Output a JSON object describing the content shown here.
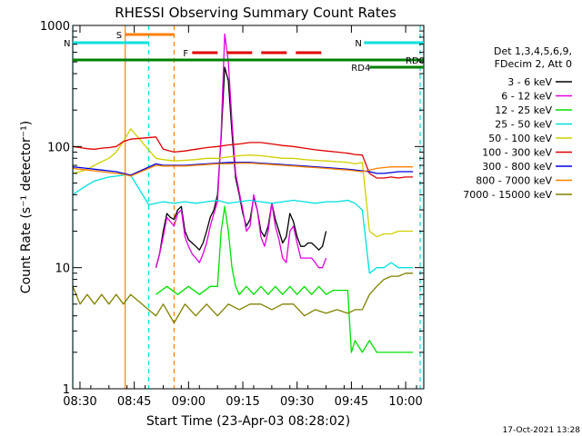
{
  "chart_data": {
    "type": "line",
    "title": "RHESSI Observing Summary Count Rates",
    "xlabel": "Start Time (23-Apr-03 08:28:02)",
    "ylabel": "Count Rate (s⁻¹ detector⁻¹)",
    "yscale": "log",
    "ylim": [
      1,
      1000
    ],
    "xlim_minutes": [
      0,
      97
    ],
    "x_unit": "minutes since 08:28:02",
    "x_ticks": [
      {
        "label": "08:30",
        "t": 2
      },
      {
        "label": "08:45",
        "t": 17
      },
      {
        "label": "09:00",
        "t": 32
      },
      {
        "label": "09:15",
        "t": 47
      },
      {
        "label": "09:30",
        "t": 62
      },
      {
        "label": "09:45",
        "t": 77
      },
      {
        "label": "10:00",
        "t": 92
      }
    ],
    "y_ticks": [
      {
        "label": "1",
        "v": 1
      },
      {
        "label": "10",
        "v": 10
      },
      {
        "label": "100",
        "v": 100
      },
      {
        "label": "1000",
        "v": 1000
      }
    ],
    "legend_title": [
      "Det 1,3,4,5,6,9,",
      "FDecim 2, Att 0"
    ],
    "legend_position": "right",
    "series": [
      {
        "name": "3 - 6 keV",
        "color": "#000000",
        "x": [
          23,
          24,
          25,
          26,
          27,
          28,
          29,
          30,
          31,
          32,
          33,
          34,
          35,
          36,
          37,
          38,
          39,
          40,
          41,
          42,
          43,
          44,
          45,
          46,
          47,
          48,
          49,
          50,
          51,
          52,
          53,
          54,
          55,
          56,
          57,
          58,
          59,
          60,
          61,
          62,
          63,
          64,
          65,
          66,
          67,
          68,
          69,
          70
        ],
        "values": [
          10,
          13,
          20,
          28,
          26,
          25,
          30,
          32,
          20,
          17,
          16,
          15,
          14,
          16,
          20,
          26,
          30,
          40,
          120,
          450,
          350,
          130,
          55,
          40,
          28,
          22,
          25,
          38,
          30,
          20,
          18,
          22,
          34,
          25,
          20,
          16,
          18,
          28,
          24,
          18,
          15,
          15,
          16,
          16,
          15,
          14,
          15,
          20
        ]
      },
      {
        "name": "6 - 12 keV",
        "color": "#e000e0",
        "x": [
          23,
          24,
          25,
          26,
          27,
          28,
          29,
          30,
          31,
          32,
          33,
          34,
          35,
          36,
          37,
          38,
          39,
          40,
          41,
          42,
          43,
          44,
          45,
          46,
          47,
          48,
          49,
          50,
          51,
          52,
          53,
          54,
          55,
          56,
          57,
          58,
          59,
          60,
          61,
          62,
          63,
          64,
          65,
          66,
          67,
          68,
          69,
          70
        ],
        "values": [
          10,
          13,
          18,
          26,
          24,
          22,
          28,
          30,
          18,
          15,
          13,
          12,
          11,
          13,
          16,
          22,
          28,
          35,
          130,
          850,
          500,
          160,
          60,
          42,
          30,
          20,
          22,
          40,
          30,
          18,
          15,
          20,
          34,
          22,
          17,
          12,
          11,
          20,
          22,
          16,
          12,
          12,
          12,
          12,
          11,
          10,
          10,
          12
        ]
      },
      {
        "name": "12 - 25 keV",
        "color": "#00e000",
        "x": [
          23,
          26,
          29,
          32,
          35,
          38,
          40,
          41,
          42,
          43,
          44,
          45,
          46,
          48,
          50,
          52,
          54,
          56,
          58,
          60,
          62,
          64,
          66,
          68,
          70,
          72,
          76,
          77,
          78,
          80,
          82,
          84,
          86,
          88,
          90,
          92,
          94
        ],
        "values": [
          6,
          7,
          6,
          7,
          6,
          7,
          7,
          20,
          32,
          20,
          10,
          7,
          6,
          7,
          6,
          7,
          6,
          7,
          6,
          7,
          6,
          7,
          6,
          7,
          6,
          6.5,
          6.5,
          2,
          2.5,
          2,
          2.5,
          2,
          2,
          2,
          2,
          2,
          2
        ]
      },
      {
        "name": "25 - 50 keV",
        "color": "#00e0e0",
        "x": [
          0,
          2,
          4,
          6,
          8,
          10,
          12,
          14,
          16,
          21,
          23,
          25,
          28,
          31,
          34,
          37,
          40,
          43,
          46,
          49,
          52,
          55,
          58,
          61,
          64,
          67,
          70,
          73,
          76,
          78,
          80,
          82,
          84,
          86,
          88,
          90,
          92,
          94
        ],
        "values": [
          40,
          44,
          48,
          52,
          54,
          56,
          57,
          58,
          58,
          33,
          34,
          35,
          34,
          35,
          34,
          35,
          36,
          34,
          35,
          36,
          35,
          34,
          35,
          36,
          35,
          34,
          35,
          35,
          36,
          34,
          30,
          9,
          10,
          10,
          11,
          10,
          10,
          10
        ]
      },
      {
        "name": "50 - 100 keV",
        "color": "#d0d000",
        "x": [
          0,
          2,
          4,
          6,
          8,
          10,
          12,
          14,
          16,
          23,
          25,
          28,
          31,
          34,
          37,
          40,
          43,
          46,
          49,
          52,
          55,
          58,
          61,
          64,
          67,
          70,
          73,
          76,
          78,
          80,
          82,
          84,
          86,
          88,
          90,
          92,
          94
        ],
        "values": [
          60,
          62,
          65,
          70,
          75,
          80,
          90,
          110,
          140,
          80,
          78,
          76,
          77,
          78,
          80,
          80,
          82,
          84,
          85,
          84,
          82,
          80,
          80,
          78,
          77,
          76,
          75,
          74,
          72,
          74,
          20,
          18,
          19,
          19,
          20,
          20,
          20
        ]
      },
      {
        "name": "100 - 300 keV",
        "color": "#e00000",
        "x": [
          0,
          2,
          4,
          6,
          8,
          10,
          12,
          14,
          16,
          23,
          25,
          28,
          31,
          34,
          37,
          40,
          43,
          46,
          49,
          52,
          55,
          58,
          61,
          64,
          67,
          70,
          73,
          76,
          78,
          80,
          82,
          84,
          86,
          88,
          90,
          92,
          94
        ],
        "values": [
          100,
          98,
          96,
          95,
          97,
          98,
          100,
          110,
          115,
          120,
          95,
          90,
          92,
          95,
          98,
          100,
          103,
          105,
          108,
          108,
          105,
          102,
          100,
          97,
          94,
          92,
          90,
          88,
          86,
          85,
          60,
          55,
          55,
          56,
          55,
          56,
          56
        ]
      },
      {
        "name": "300 - 800 keV",
        "color": "#0000e0",
        "x": [
          0,
          2,
          4,
          6,
          8,
          10,
          12,
          14,
          16,
          23,
          25,
          28,
          31,
          34,
          37,
          40,
          43,
          46,
          49,
          52,
          55,
          58,
          61,
          64,
          67,
          70,
          73,
          76,
          78,
          80,
          82,
          84,
          86,
          88,
          90,
          92,
          94
        ],
        "values": [
          68,
          67,
          66,
          65,
          64,
          63,
          62,
          60,
          58,
          72,
          70,
          70,
          70,
          71,
          72,
          73,
          74,
          74,
          74,
          73,
          72,
          71,
          70,
          69,
          68,
          67,
          66,
          65,
          64,
          63,
          62,
          60,
          60,
          61,
          62,
          62,
          62
        ]
      },
      {
        "name": "800 - 7000 keV",
        "color": "#ff8000",
        "x": [
          0,
          2,
          4,
          6,
          8,
          10,
          12,
          14,
          16,
          23,
          25,
          28,
          31,
          34,
          37,
          40,
          43,
          46,
          49,
          52,
          55,
          58,
          61,
          64,
          67,
          70,
          73,
          76,
          78,
          80,
          82,
          84,
          86,
          88,
          90,
          92,
          94
        ],
        "values": [
          66,
          65,
          64,
          63,
          62,
          61,
          60,
          59,
          57,
          70,
          69,
          69,
          69,
          70,
          71,
          72,
          72,
          73,
          73,
          72,
          71,
          70,
          69,
          68,
          67,
          66,
          65,
          64,
          63,
          62,
          64,
          66,
          67,
          68,
          68,
          68,
          68
        ]
      },
      {
        "name": "7000 - 15000 keV",
        "color": "#808000",
        "x": [
          0,
          2,
          4,
          6,
          8,
          10,
          12,
          14,
          16,
          23,
          25,
          28,
          31,
          34,
          37,
          40,
          43,
          46,
          49,
          52,
          55,
          58,
          61,
          64,
          67,
          70,
          73,
          76,
          78,
          80,
          82,
          84,
          86,
          88,
          90,
          92,
          94
        ],
        "values": [
          7,
          5,
          6,
          5,
          6,
          5,
          6,
          5,
          6,
          4,
          5,
          3.5,
          5,
          4,
          5,
          4,
          5,
          4.5,
          5,
          5,
          4.5,
          5,
          5,
          4,
          4.5,
          4.2,
          4.5,
          4.2,
          4.5,
          4.5,
          6,
          7,
          8,
          8.5,
          8.5,
          9,
          9
        ]
      }
    ],
    "verticals": [
      {
        "label": "",
        "t": 0,
        "color": "#00e0e0",
        "dashed": false
      },
      {
        "label": "",
        "t": 14.5,
        "color": "#ff8000",
        "dashed": false
      },
      {
        "label": "",
        "t": 21,
        "color": "#00e0e0",
        "dashed": true
      },
      {
        "label": "",
        "t": 28,
        "color": "#ff8000",
        "dashed": true
      },
      {
        "label": "",
        "t": 96,
        "color": "#00e0e0",
        "dashed": true
      },
      {
        "label": "",
        "t": 97,
        "color": "#00e0e0",
        "dashed": false
      }
    ],
    "flag_bars": [
      {
        "label": "S",
        "color": "#ff8000",
        "t_start": 14.5,
        "t_end": 28,
        "level": "top",
        "dashed": false
      },
      {
        "label": "N",
        "color": "#00e0e0",
        "t_start": 0,
        "t_end": 21,
        "level": "top2",
        "dashed": false
      },
      {
        "label": "N",
        "color": "#00e0e0",
        "t_start": 80.5,
        "t_end": 97,
        "level": "top2",
        "dashed": false
      },
      {
        "label": "F",
        "color": "#e00000",
        "t_start": 33,
        "t_end": 70,
        "level": "top3",
        "dashed": true
      },
      {
        "label": "RD0",
        "color": "#008000",
        "t_start": 0,
        "t_end": 97,
        "level": "top4",
        "dashed": false
      },
      {
        "label": "RD4",
        "color": "#008000",
        "t_start": 82,
        "t_end": 97,
        "level": "top5",
        "dashed": false
      }
    ]
  },
  "footer": {
    "date_stamp": "17-Oct-2021 13:28"
  }
}
